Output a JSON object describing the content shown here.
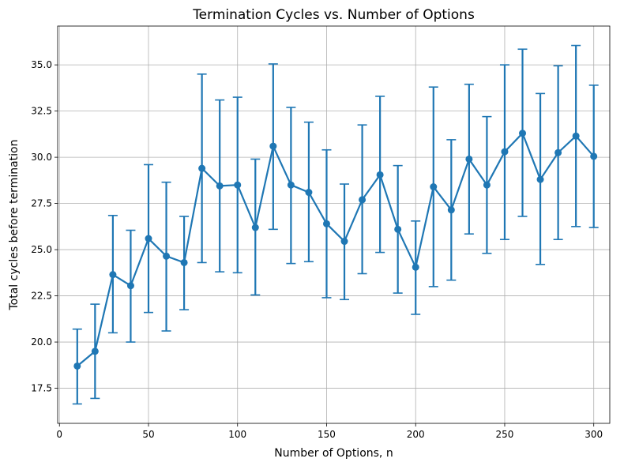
{
  "chart_data": {
    "type": "line",
    "title": "Termination Cycles vs. Number of Options",
    "xlabel": "Number of Options, n",
    "ylabel": "Total cycles before termination",
    "xlim": [
      -1,
      309
    ],
    "ylim": [
      15.6,
      37.1
    ],
    "x_ticks": [
      0,
      50,
      100,
      150,
      200,
      250,
      300
    ],
    "x_tick_labels": [
      "0",
      "50",
      "100",
      "150",
      "200",
      "250",
      "300"
    ],
    "y_ticks": [
      17.5,
      20.0,
      22.5,
      25.0,
      27.5,
      30.0,
      32.5,
      35.0
    ],
    "y_tick_labels": [
      "17.5",
      "20.0",
      "22.5",
      "25.0",
      "27.5",
      "30.0",
      "32.5",
      "35.0"
    ],
    "grid": true,
    "color": "#1f77b4",
    "series": [
      {
        "x": [
          10,
          20,
          30,
          40,
          50,
          60,
          70,
          80,
          90,
          100,
          110,
          120,
          130,
          140,
          150,
          160,
          170,
          180,
          190,
          200,
          210,
          220,
          230,
          240,
          250,
          260,
          270,
          280,
          290,
          300
        ],
        "y": [
          18.7,
          19.5,
          23.65,
          23.05,
          25.6,
          24.65,
          24.3,
          29.4,
          28.45,
          28.5,
          26.2,
          30.6,
          28.5,
          28.1,
          26.4,
          25.45,
          27.7,
          29.05,
          26.1,
          24.05,
          28.4,
          27.15,
          29.9,
          28.5,
          30.3,
          31.3,
          28.8,
          30.25,
          31.15,
          30.05
        ],
        "yerr_low": [
          16.65,
          16.95,
          20.5,
          20.0,
          21.6,
          20.6,
          21.75,
          24.3,
          23.8,
          23.75,
          22.55,
          26.1,
          24.25,
          24.35,
          22.4,
          22.3,
          23.7,
          24.85,
          22.65,
          21.5,
          23.0,
          23.35,
          25.85,
          24.8,
          25.55,
          26.8,
          24.2,
          25.55,
          26.25,
          26.2
        ],
        "yerr_high": [
          20.7,
          22.05,
          26.85,
          26.05,
          29.6,
          28.65,
          26.8,
          34.5,
          33.1,
          33.25,
          29.9,
          35.05,
          32.7,
          31.9,
          30.4,
          28.55,
          31.75,
          33.3,
          29.55,
          26.55,
          33.8,
          30.95,
          33.95,
          32.2,
          35.0,
          35.85,
          33.45,
          34.95,
          36.05,
          33.9
        ]
      }
    ]
  }
}
